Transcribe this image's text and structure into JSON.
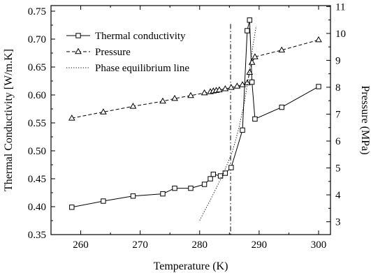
{
  "chart_data": {
    "type": "line",
    "x_label": "Temperature (K)",
    "y_label_left": "Thermal Conductivity [W/m.K]",
    "y_label_right": "Pressure (MPa)",
    "x_range": [
      255,
      302
    ],
    "y_left_range": [
      0.35,
      0.76
    ],
    "y_right_range": [
      2.523,
      11.035
    ],
    "x_ticks": [
      260,
      270,
      280,
      290,
      300
    ],
    "y_left_ticks": [
      0.35,
      0.4,
      0.45,
      0.5,
      0.55,
      0.6,
      0.65,
      0.7,
      0.75
    ],
    "y_right_ticks": [
      3,
      4,
      5,
      6,
      7,
      8,
      9,
      10,
      11
    ],
    "x_tick_labels": [
      "260",
      "270",
      "280",
      "290",
      "300"
    ],
    "y_left_tick_labels": [
      "0.35",
      "0.40",
      "0.45",
      "0.50",
      "0.55",
      "0.60",
      "0.65",
      "0.70",
      "0.75"
    ],
    "y_right_tick_labels": [
      "3",
      "4",
      "5",
      "6",
      "7",
      "8",
      "9",
      "10",
      "11"
    ],
    "legend_position": "top-center",
    "series": [
      {
        "name": "Thermal conductivity",
        "axis": "left",
        "marker": "square",
        "line_style": "solid",
        "x": [
          258.5,
          263.8,
          268.8,
          273.8,
          275.8,
          278.5,
          280.8,
          281.8,
          282.3,
          283.5,
          284.3,
          285.3,
          287.2,
          288.0,
          288.4,
          288.8,
          289.3,
          293.8,
          300.0
        ],
        "y": [
          0.399,
          0.41,
          0.419,
          0.423,
          0.433,
          0.433,
          0.44,
          0.45,
          0.458,
          0.455,
          0.46,
          0.47,
          0.537,
          0.715,
          0.734,
          0.623,
          0.557,
          0.578,
          0.615
        ]
      },
      {
        "name": "Pressure",
        "axis": "right",
        "marker": "triangle",
        "line_style": "dashed",
        "x": [
          258.5,
          263.8,
          268.8,
          273.8,
          275.8,
          278.5,
          280.8,
          281.8,
          282.3,
          282.8,
          283.3,
          284.3,
          285.3,
          286.3,
          287.2,
          288.0,
          288.4,
          288.8,
          289.3,
          293.8,
          300.0
        ],
        "y": [
          6.85,
          7.08,
          7.29,
          7.48,
          7.58,
          7.69,
          7.79,
          7.83,
          7.86,
          7.88,
          7.9,
          7.94,
          7.99,
          8.04,
          8.09,
          8.16,
          8.55,
          8.92,
          9.13,
          9.38,
          9.76
        ]
      },
      {
        "name": "Phase equilibrium line",
        "axis": "right",
        "marker": "none",
        "line_style": "dotted",
        "x": [
          280.0,
          282.0,
          284.0,
          285.5,
          286.5,
          287.5,
          288.3,
          289.0,
          289.5
        ],
        "y": [
          3.05,
          3.9,
          4.8,
          5.6,
          6.4,
          7.4,
          8.5,
          9.6,
          10.28
        ]
      }
    ],
    "annotations": [
      {
        "kind": "vertical_line",
        "x": 285.2,
        "line_style": "dash-dot"
      }
    ]
  }
}
